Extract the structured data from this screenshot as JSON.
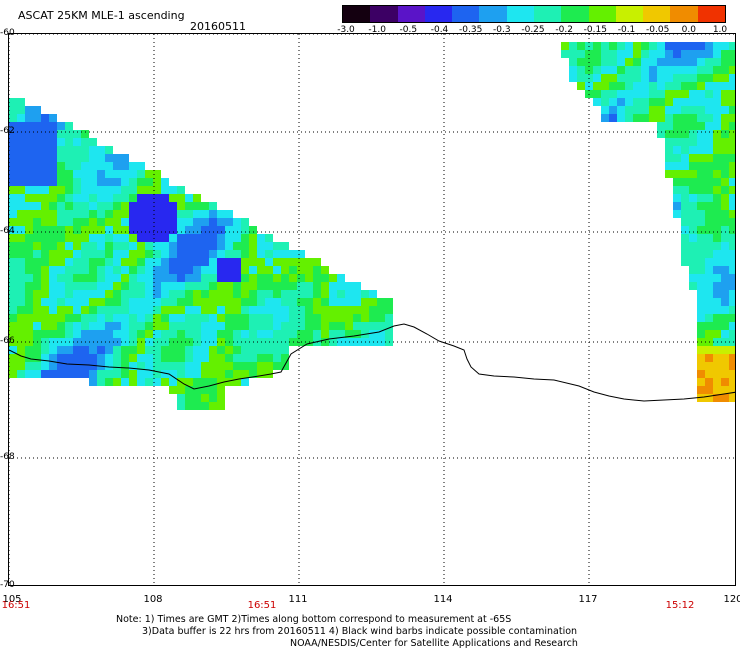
{
  "header": {
    "title": "ASCAT 25KM MLE-1 ascending",
    "date": "20160511"
  },
  "colorbar": {
    "labels": [
      "-3.0",
      "-1.0",
      "-0.5",
      "-0.4",
      "-0.35",
      "-0.3",
      "-0.25",
      "-0.2",
      "-0.15",
      "-0.1",
      "-0.05",
      "0.0",
      "1.0"
    ],
    "colors": [
      "#140010",
      "#3c0064",
      "#5a14c8",
      "#2828f0",
      "#1e64f0",
      "#1ea0f0",
      "#1ee6f0",
      "#1ef0b4",
      "#1eeb50",
      "#64f000",
      "#c8f000",
      "#f0c800",
      "#f08c00",
      "#f03200"
    ]
  },
  "map": {
    "lat_labels": [
      "-60",
      "-62",
      "-64",
      "-66",
      "-68",
      "-70"
    ],
    "lon_labels": [
      "105",
      "108",
      "111",
      "114",
      "117",
      "120"
    ],
    "lat_range": [
      -70,
      -60
    ],
    "lon_range": [
      105,
      120
    ],
    "pass_times": [
      "16:51",
      "16:51",
      "15:12"
    ],
    "icons": [
      "coastline",
      "swath-left",
      "swath-right"
    ]
  },
  "notes": {
    "line1": "Note: 1) Times are GMT 2)Times along bottom correspond to measurement at -65S",
    "line2": "3)Data buffer is 22 hrs from 20160511 4) Black wind barbs indicate possible contamination",
    "line3": "NOAA/NESDIS/Center for Satellite Applications and Research"
  }
}
